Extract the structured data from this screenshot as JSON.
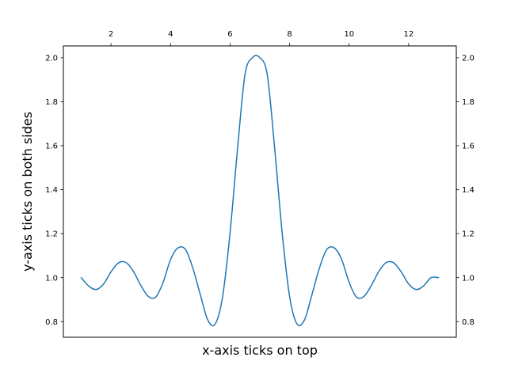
{
  "chart_data": {
    "type": "line",
    "xlabel": "x-axis ticks on top",
    "ylabel": "y-axis ticks on both sides",
    "xlim": [
      0.4,
      13.6
    ],
    "ylim": [
      0.7288,
      2.0536
    ],
    "x_ticks": [
      2,
      4,
      6,
      8,
      10,
      12
    ],
    "x_tick_labels": [
      "2",
      "4",
      "6",
      "8",
      "10",
      "12"
    ],
    "y_ticks": [
      0.8,
      1.0,
      1.2,
      1.4,
      1.6,
      1.8,
      2.0
    ],
    "y_tick_labels_left": [
      "0.8",
      "1.0",
      "1.2",
      "1.4",
      "1.6",
      "1.8",
      "2.0"
    ],
    "y_tick_labels_right": [
      "0.8",
      "1.0",
      "1.2",
      "1.4",
      "1.6",
      "1.8",
      "2.0"
    ],
    "x_ticks_position": "top",
    "y_ticks_position": "both",
    "grid": false,
    "series": [
      {
        "color": "#1f77b4",
        "x": [
          1.0,
          1.25,
          1.5,
          1.75,
          2.0,
          2.25,
          2.5,
          2.75,
          3.0,
          3.25,
          3.5,
          3.75,
          4.0,
          4.25,
          4.5,
          4.75,
          5.0,
          5.25,
          5.5,
          5.75,
          6.0,
          6.25,
          6.5,
          6.75,
          7.0,
          7.25,
          7.5,
          7.75,
          8.0,
          8.25,
          8.5,
          8.75,
          9.0,
          9.25,
          9.5,
          9.75,
          10.0,
          10.25,
          10.5,
          10.75,
          11.0,
          11.25,
          11.5,
          11.75,
          12.0,
          12.25,
          12.5,
          12.75,
          13.0
        ],
        "y": [
          1.0,
          0.962,
          0.946,
          0.971,
          1.026,
          1.067,
          1.069,
          1.029,
          0.965,
          0.915,
          0.911,
          0.978,
          1.082,
          1.135,
          1.128,
          1.043,
          0.922,
          0.808,
          0.789,
          0.914,
          1.204,
          1.585,
          1.922,
          2.0,
          2.0,
          1.922,
          1.585,
          1.204,
          0.914,
          0.789,
          0.808,
          0.922,
          1.043,
          1.128,
          1.135,
          1.082,
          0.978,
          0.911,
          0.915,
          0.965,
          1.029,
          1.069,
          1.067,
          1.026,
          0.971,
          0.946,
          0.962,
          1.0,
          1.0
        ]
      }
    ]
  }
}
